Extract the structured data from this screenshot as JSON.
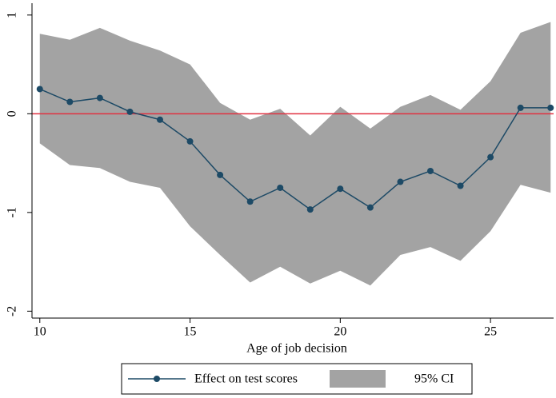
{
  "chart_data": {
    "type": "line",
    "x_label": "Age of job decision",
    "x": [
      10,
      11,
      12,
      13,
      14,
      15,
      16,
      17,
      18,
      19,
      20,
      21,
      22,
      23,
      24,
      25,
      26,
      27
    ],
    "series": [
      {
        "name": "Effect on test scores",
        "color": "#1d4a66",
        "values": [
          0.25,
          0.12,
          0.16,
          0.02,
          -0.06,
          -0.28,
          -0.62,
          -0.89,
          -0.75,
          -0.97,
          -0.76,
          -0.95,
          -0.69,
          -0.58,
          -0.73,
          -0.44,
          0.06,
          0.06
        ]
      }
    ],
    "ci": {
      "name": "95% CI",
      "color": "#a3a3a3",
      "upper": [
        0.81,
        0.75,
        0.87,
        0.74,
        0.64,
        0.5,
        0.11,
        -0.06,
        0.05,
        -0.22,
        0.07,
        -0.15,
        0.07,
        0.19,
        0.04,
        0.33,
        0.82,
        0.93
      ],
      "lower": [
        -0.3,
        -0.52,
        -0.55,
        -0.69,
        -0.75,
        -1.14,
        -1.43,
        -1.71,
        -1.55,
        -1.72,
        -1.59,
        -1.74,
        -1.43,
        -1.35,
        -1.49,
        -1.19,
        -0.72,
        -0.8
      ]
    },
    "reference_line": {
      "value": 0,
      "color": "#e03040"
    },
    "xlim": [
      9.74,
      27.1
    ],
    "ylim": [
      -2.07,
      1.12
    ],
    "xticks": [
      10,
      15,
      20,
      25
    ],
    "yticks": [
      -2,
      -1,
      0,
      1
    ]
  }
}
